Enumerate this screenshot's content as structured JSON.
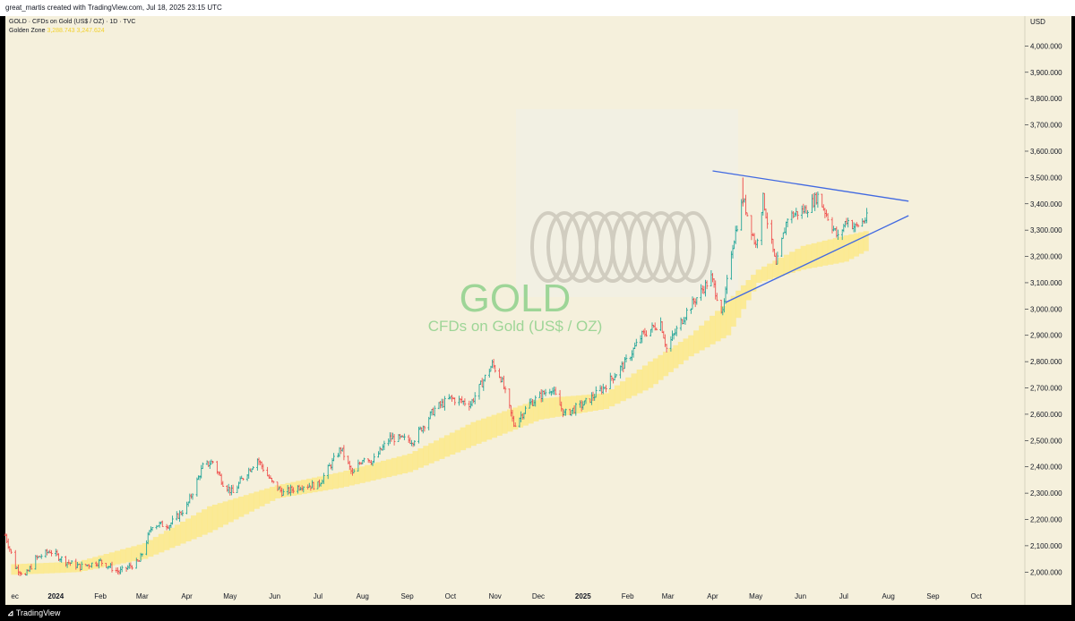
{
  "header": {
    "credit": "great_martis created with TradingView.com, Jul 18, 2025 23:15 UTC"
  },
  "legend": {
    "symbol_line": "GOLD · CFDs on Gold (US$ / OZ) · 1D · TVC",
    "indicator_name": "Golden Zone",
    "indicator_values": "3,288.743  3,247.624"
  },
  "watermark": {
    "ticker": "GOLD",
    "description": "CFDs on Gold (US$ / OZ)"
  },
  "footer": {
    "brand": "TradingView"
  },
  "colors": {
    "background": "#f5f0dc",
    "up": "#26a69a",
    "down": "#ef5350",
    "zone": "#fbe98a",
    "trendline": "#4169e1",
    "watermark": "#8fd18b"
  },
  "chart_data": {
    "type": "bar",
    "currency_label": "USD",
    "y_ticks": [
      "2,000.000",
      "2,100.000",
      "2,200.000",
      "2,300.000",
      "2,400.000",
      "2,500.000",
      "2,600.000",
      "2,700.000",
      "2,800.000",
      "2,900.000",
      "3,000.000",
      "3,100.000",
      "3,200.000",
      "3,300.000",
      "3,400.000",
      "3,500.000",
      "3,600.000",
      "3,700.000",
      "3,800.000",
      "3,900.000",
      "4,000.000"
    ],
    "ylim": [
      1950,
      4100
    ],
    "x_labels": [
      {
        "date": "2023-12-01",
        "text": "ec",
        "bold": false
      },
      {
        "date": "2024-01-01",
        "text": "2024",
        "bold": true
      },
      {
        "date": "2024-02-01",
        "text": "Feb",
        "bold": false
      },
      {
        "date": "2024-03-01",
        "text": "Mar",
        "bold": false
      },
      {
        "date": "2024-04-01",
        "text": "Apr",
        "bold": false
      },
      {
        "date": "2024-05-01",
        "text": "May",
        "bold": false
      },
      {
        "date": "2024-06-01",
        "text": "Jun",
        "bold": false
      },
      {
        "date": "2024-07-01",
        "text": "Jul",
        "bold": false
      },
      {
        "date": "2024-08-01",
        "text": "Aug",
        "bold": false
      },
      {
        "date": "2024-09-01",
        "text": "Sep",
        "bold": false
      },
      {
        "date": "2024-10-01",
        "text": "Oct",
        "bold": false
      },
      {
        "date": "2024-11-01",
        "text": "Nov",
        "bold": false
      },
      {
        "date": "2024-12-01",
        "text": "Dec",
        "bold": false
      },
      {
        "date": "2025-01-01",
        "text": "2025",
        "bold": true
      },
      {
        "date": "2025-02-01",
        "text": "Feb",
        "bold": false
      },
      {
        "date": "2025-03-01",
        "text": "Mar",
        "bold": false
      },
      {
        "date": "2025-04-01",
        "text": "Apr",
        "bold": false
      },
      {
        "date": "2025-05-01",
        "text": "May",
        "bold": false
      },
      {
        "date": "2025-06-01",
        "text": "Jun",
        "bold": false
      },
      {
        "date": "2025-07-01",
        "text": "Jul",
        "bold": false
      },
      {
        "date": "2025-08-01",
        "text": "Aug",
        "bold": false
      },
      {
        "date": "2025-09-01",
        "text": "Sep",
        "bold": false
      },
      {
        "date": "2025-10-01",
        "text": "Oct",
        "bold": false
      }
    ],
    "price_path": [
      [
        "2023-11-27",
        2140
      ],
      [
        "2023-12-04",
        2020
      ],
      [
        "2023-12-11",
        1985
      ],
      [
        "2023-12-18",
        2050
      ],
      [
        "2023-12-28",
        2080
      ],
      [
        "2024-01-08",
        2040
      ],
      [
        "2024-01-18",
        2020
      ],
      [
        "2024-02-01",
        2040
      ],
      [
        "2024-02-14",
        2000
      ],
      [
        "2024-02-28",
        2040
      ],
      [
        "2024-03-08",
        2180
      ],
      [
        "2024-03-20",
        2180
      ],
      [
        "2024-04-01",
        2250
      ],
      [
        "2024-04-12",
        2400
      ],
      [
        "2024-04-19",
        2420
      ],
      [
        "2024-04-26",
        2340
      ],
      [
        "2024-05-03",
        2300
      ],
      [
        "2024-05-10",
        2360
      ],
      [
        "2024-05-20",
        2430
      ],
      [
        "2024-05-30",
        2340
      ],
      [
        "2024-06-07",
        2300
      ],
      [
        "2024-06-20",
        2330
      ],
      [
        "2024-07-01",
        2330
      ],
      [
        "2024-07-17",
        2470
      ],
      [
        "2024-07-25",
        2370
      ],
      [
        "2024-08-02",
        2440
      ],
      [
        "2024-08-08",
        2420
      ],
      [
        "2024-08-20",
        2510
      ],
      [
        "2024-09-05",
        2500
      ],
      [
        "2024-09-20",
        2620
      ],
      [
        "2024-10-01",
        2660
      ],
      [
        "2024-10-15",
        2640
      ],
      [
        "2024-10-30",
        2790
      ],
      [
        "2024-11-05",
        2740
      ],
      [
        "2024-11-14",
        2560
      ],
      [
        "2024-11-25",
        2640
      ],
      [
        "2024-12-10",
        2700
      ],
      [
        "2024-12-19",
        2600
      ],
      [
        "2025-01-02",
        2640
      ],
      [
        "2025-01-15",
        2700
      ],
      [
        "2025-01-31",
        2800
      ],
      [
        "2025-02-11",
        2900
      ],
      [
        "2025-02-24",
        2950
      ],
      [
        "2025-02-28",
        2850
      ],
      [
        "2025-03-14",
        2990
      ],
      [
        "2025-03-31",
        3120
      ],
      [
        "2025-04-08",
        2980
      ],
      [
        "2025-04-14",
        3220
      ],
      [
        "2025-04-22",
        3420
      ],
      [
        "2025-05-01",
        3240
      ],
      [
        "2025-05-06",
        3420
      ],
      [
        "2025-05-15",
        3160
      ],
      [
        "2025-05-23",
        3350
      ],
      [
        "2025-06-05",
        3380
      ],
      [
        "2025-06-13",
        3430
      ],
      [
        "2025-06-27",
        3270
      ],
      [
        "2025-07-03",
        3340
      ],
      [
        "2025-07-09",
        3310
      ],
      [
        "2025-07-18",
        3350
      ]
    ],
    "golden_zone": [
      [
        "2023-12-01",
        1990,
        2030
      ],
      [
        "2024-01-15",
        2000,
        2040
      ],
      [
        "2024-03-01",
        2050,
        2110
      ],
      [
        "2024-04-15",
        2150,
        2250
      ],
      [
        "2024-06-01",
        2280,
        2330
      ],
      [
        "2024-07-15",
        2320,
        2380
      ],
      [
        "2024-09-01",
        2380,
        2450
      ],
      [
        "2024-10-15",
        2480,
        2570
      ],
      [
        "2024-12-01",
        2580,
        2660
      ],
      [
        "2025-01-15",
        2620,
        2680
      ],
      [
        "2025-02-15",
        2700,
        2800
      ],
      [
        "2025-03-15",
        2820,
        2900
      ],
      [
        "2025-04-10",
        2900,
        3030
      ],
      [
        "2025-05-01",
        3100,
        3150
      ],
      [
        "2025-06-01",
        3150,
        3240
      ],
      [
        "2025-07-01",
        3180,
        3280
      ],
      [
        "2025-07-18",
        3230,
        3300
      ]
    ],
    "trendlines": [
      {
        "name": "upper",
        "from": [
          "2025-04-01",
          3525
        ],
        "to": [
          "2025-08-15",
          3410
        ]
      },
      {
        "name": "lower",
        "from": [
          "2025-04-10",
          3025
        ],
        "to": [
          "2025-08-15",
          3355
        ]
      }
    ],
    "grid": false
  }
}
